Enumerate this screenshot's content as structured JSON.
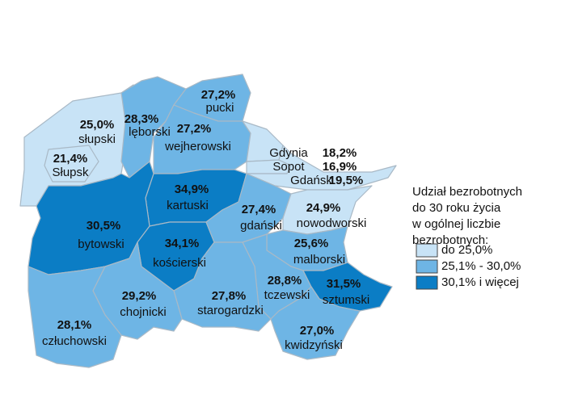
{
  "map": {
    "regions": [
      {
        "name": "słupski",
        "value": 25.0,
        "value_label": "25,0%",
        "color": "#c8e3f6"
      },
      {
        "name": "Słupsk",
        "value": 21.4,
        "value_label": "21,4%",
        "color": "#c8e3f6"
      },
      {
        "name": "lęborski",
        "value": 28.3,
        "value_label": "28,3%",
        "color": "#6eb5e5"
      },
      {
        "name": "pucki",
        "value": 27.2,
        "value_label": "27,2%",
        "color": "#6eb5e5"
      },
      {
        "name": "wejherowski",
        "value": 27.2,
        "value_label": "27,2%",
        "color": "#6eb5e5"
      },
      {
        "name": "Gdynia",
        "value": 18.2,
        "value_label": "18,2%",
        "color": "#c8e3f6"
      },
      {
        "name": "Sopot",
        "value": 16.9,
        "value_label": "16,9%",
        "color": "#c8e3f6"
      },
      {
        "name": "Gdańsk",
        "value": 19.5,
        "value_label": "19,5%",
        "color": "#c8e3f6"
      },
      {
        "name": "kartuski",
        "value": 34.9,
        "value_label": "34,9%",
        "color": "#0b7dc5"
      },
      {
        "name": "bytowski",
        "value": 30.5,
        "value_label": "30,5%",
        "color": "#0b7dc5"
      },
      {
        "name": "kościerski",
        "value": 34.1,
        "value_label": "34,1%",
        "color": "#0b7dc5"
      },
      {
        "name": "gdański",
        "value": 27.4,
        "value_label": "27,4%",
        "color": "#6eb5e5"
      },
      {
        "name": "nowodworski",
        "value": 24.9,
        "value_label": "24,9%",
        "color": "#c8e3f6"
      },
      {
        "name": "malborski",
        "value": 25.6,
        "value_label": "25,6%",
        "color": "#6eb5e5"
      },
      {
        "name": "tczewski",
        "value": 28.8,
        "value_label": "28,8%",
        "color": "#6eb5e5"
      },
      {
        "name": "sztumski",
        "value": 31.5,
        "value_label": "31,5%",
        "color": "#0b7dc5"
      },
      {
        "name": "starogardzki",
        "value": 27.8,
        "value_label": "27,8%",
        "color": "#6eb5e5"
      },
      {
        "name": "chojnicki",
        "value": 29.2,
        "value_label": "29,2%",
        "color": "#6eb5e5"
      },
      {
        "name": "człuchowski",
        "value": 28.1,
        "value_label": "28,1%",
        "color": "#6eb5e5"
      },
      {
        "name": "kwidzyński",
        "value": 27.0,
        "value_label": "27,0%",
        "color": "#6eb5e5"
      }
    ],
    "legend": {
      "title": [
        "Udział bezrobotnych",
        "do 30 roku życia",
        "w ogólnej liczbie",
        "bezrobotnych:"
      ],
      "items": [
        {
          "label": "do 25,0%",
          "color": "#c8e3f6"
        },
        {
          "label": "25,1% - 30,0%",
          "color": "#6eb5e5"
        },
        {
          "label": "30,1% i więcej",
          "color": "#0b7dc5"
        }
      ]
    }
  }
}
